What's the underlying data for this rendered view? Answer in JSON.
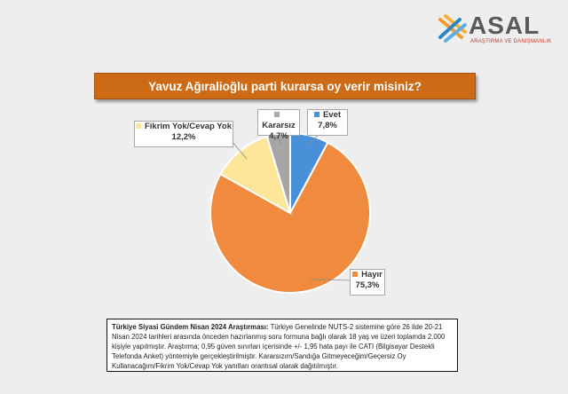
{
  "brand": {
    "name": "ASAL",
    "tagline": "ARAŞTIRMA VE DANIŞMANLIK",
    "colors": {
      "orange": "#f39c2b",
      "blue": "#2e86c1",
      "gray": "#5a5a5a"
    }
  },
  "chart_data": {
    "type": "pie",
    "title": "Yavuz Ağıralioğlu parti kurarsa oy verir misiniz?",
    "unit": "%",
    "slices": [
      {
        "label": "Evet",
        "value": 7.8,
        "display": "7,8%",
        "color": "#4a90d9"
      },
      {
        "label": "Hayır",
        "value": 75.3,
        "display": "75,3%",
        "color": "#f08a3e"
      },
      {
        "label": "Fikrim Yok/Cevap Yok",
        "value": 12.2,
        "display": "12,2%",
        "color": "#fde59a"
      },
      {
        "label": "Kararsız",
        "value": 4.7,
        "display": "4,7%",
        "color": "#a6a6a6"
      }
    ]
  },
  "note": {
    "heading": "Türkiye Siyasi Gündem Nisan 2024 Araştırması:",
    "body": "Türkiye Genelinde NUTS-2 sistemine göre 26 ilde 20-21 Nisan 2024 tarihleri arasında önceden hazırlanmış soru formuna bağlı olarak 18 yaş ve üzeri toplamda 2.000 kişiyle yapılmıştır. Araştırma; 0,95 güven sınırları içerisinde +/- 1,95 hata payı ile CATI (Bilgisayar Destekli Telefonda Anket) yöntemiyle gerçekleştirilmiştir. Kararsızım/Sandığa Gitmeyeceğim/Geçersiz Oy Kullanacağım/Fikrim Yok/Cevap Yok yanıtları orantısal olarak dağıtılmıştır."
  }
}
